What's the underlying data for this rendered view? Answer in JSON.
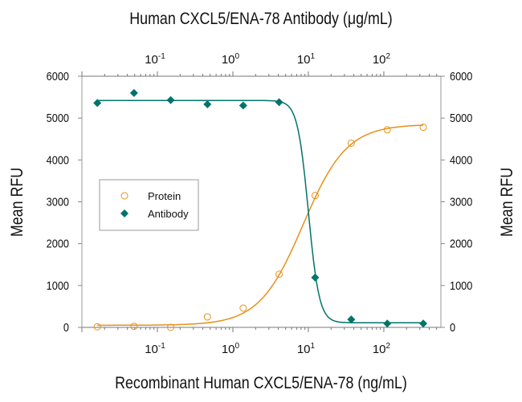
{
  "chart_data": {
    "type": "scatter",
    "title": "Human CXCL5/ENA-78 Antibody (μg/mL)",
    "xlabel": "Recombinant Human CXCL5/ENA-78 (ng/mL)",
    "ylabel": "Mean RFU",
    "ylabel_right": "Mean RFU",
    "x_scale": "log",
    "xlim": [
      0.01,
      570
    ],
    "ylim": [
      0,
      6000
    ],
    "x_tick_labels": [
      {
        "base": "10",
        "exp": "-1",
        "value": 0.1
      },
      {
        "base": "10",
        "exp": "0",
        "value": 1
      },
      {
        "base": "10",
        "exp": "1",
        "value": 10
      },
      {
        "base": "10",
        "exp": "2",
        "value": 100
      }
    ],
    "y_ticks": [
      0,
      1000,
      2000,
      3000,
      4000,
      5000,
      6000
    ],
    "grid": false,
    "legend_placement": "center-left",
    "series": [
      {
        "name": "Protein",
        "marker": "open-circle",
        "color": "#E8901A",
        "x": [
          0.016,
          0.049,
          0.15,
          0.46,
          1.37,
          4.1,
          12.3,
          37,
          111,
          333
        ],
        "y": [
          15,
          25,
          0,
          250,
          460,
          1270,
          3150,
          4400,
          4720,
          4780
        ],
        "fit": {
          "bottom": 50,
          "top": 4850,
          "ec50": 8.5,
          "hill": 1.5
        }
      },
      {
        "name": "Antibody",
        "marker": "filled-diamond",
        "color": "#00736A",
        "x": [
          0.016,
          0.049,
          0.15,
          0.46,
          1.37,
          4.1,
          12.3,
          37,
          111,
          333
        ],
        "y": [
          5360,
          5600,
          5430,
          5330,
          5300,
          5380,
          1190,
          190,
          90,
          90
        ],
        "fit": {
          "bottom": 110,
          "top": 5420,
          "ec50": 10,
          "hill": 6
        }
      }
    ]
  }
}
